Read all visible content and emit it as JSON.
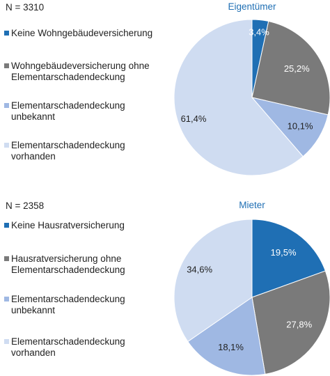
{
  "colors": {
    "keine": "#1f6fb4",
    "ohne": "#7a7a7a",
    "unbekannt": "#9fb8e3",
    "vorhanden": "#cfdcf1",
    "title": "#1f6fb4"
  },
  "charts": {
    "top": {
      "n_label": "N = 3310"
    },
    "bottom": {
      "n_label": "N = 2358"
    }
  },
  "chart_data": [
    {
      "type": "pie",
      "title": "Eigentümer",
      "categories": [
        "Keine Wohngebäudeversicherung",
        "Wohngebäudeversicherung ohne Elementarschadendeckung",
        "Elementarschadendeckung unbekannt",
        "Elementarschadendeckung vorhanden"
      ],
      "values": [
        3.4,
        25.2,
        10.1,
        61.4
      ],
      "labels": [
        "3,4%",
        "25,2%",
        "10,1%",
        "61,4%"
      ],
      "legend_lines": [
        [
          "Keine Wohngebäudeversicherung"
        ],
        [
          "Wohngebäudeversicherung ohne",
          "Elementarschadendeckung"
        ],
        [
          "Elementarschadendeckung",
          "unbekannt"
        ],
        [
          "Elementarschadendeckung",
          "vorhanden"
        ]
      ]
    },
    {
      "type": "pie",
      "title": "Mieter",
      "categories": [
        "Keine Hausratversicherung",
        "Hausratversicherung ohne Elementarschadendeckung",
        "Elementarschadendeckung unbekannt",
        "Elementarschadendeckung vorhanden"
      ],
      "values": [
        19.5,
        27.8,
        18.1,
        34.6
      ],
      "labels": [
        "19,5%",
        "27,8%",
        "18,1%",
        "34,6%"
      ],
      "legend_lines": [
        [
          "Keine Hausratversicherung"
        ],
        [
          "Hausratversicherung ohne",
          "Elementarschadendeckung"
        ],
        [
          "Elementarschadendeckung",
          "unbekannt"
        ],
        [
          "Elementarschadendeckung",
          "vorhanden"
        ]
      ]
    }
  ]
}
